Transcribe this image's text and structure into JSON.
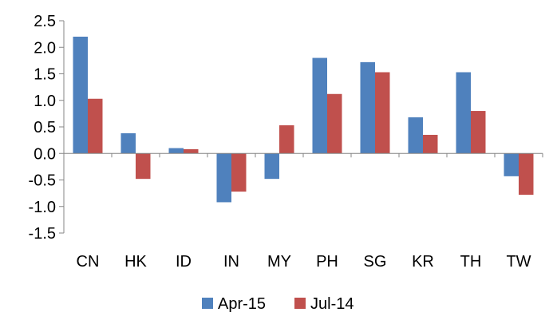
{
  "chart_data": {
    "type": "bar",
    "title": "",
    "xlabel": "",
    "ylabel": "",
    "categories": [
      "CN",
      "HK",
      "ID",
      "IN",
      "MY",
      "PH",
      "SG",
      "KR",
      "TH",
      "TW"
    ],
    "series": [
      {
        "name": "Apr-15",
        "color": "#4F81BD",
        "values": [
          2.2,
          0.38,
          0.1,
          -0.92,
          -0.48,
          1.8,
          1.72,
          0.68,
          1.53,
          -0.43
        ]
      },
      {
        "name": "Jul-14",
        "color": "#C0504D",
        "values": [
          1.03,
          -0.48,
          0.08,
          -0.72,
          0.53,
          1.12,
          1.53,
          0.35,
          0.8,
          -0.78
        ]
      }
    ],
    "ylim": [
      -1.5,
      2.5
    ],
    "yticks": [
      "2.5",
      "2.0",
      "1.5",
      "1.0",
      "0.5",
      "0.0",
      "-0.5",
      "-1.0",
      "-1.5"
    ],
    "ytick_values": [
      2.5,
      2.0,
      1.5,
      1.0,
      0.5,
      0.0,
      -0.5,
      -1.0,
      -1.5
    ],
    "grid": false,
    "legend_position": "bottom"
  }
}
